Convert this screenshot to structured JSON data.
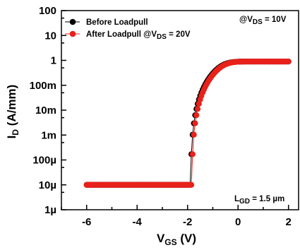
{
  "chart_data": {
    "type": "scatter",
    "xlim": [
      -7,
      2.4
    ],
    "ylim_log10": [
      -6,
      2
    ],
    "yscale": "log",
    "xticks": [
      -6,
      -4,
      -2,
      0,
      2
    ],
    "xtick_labels": [
      "-6",
      "-4",
      "-2",
      "0",
      "2"
    ],
    "yticks_log10": [
      2,
      1,
      0,
      -1,
      -2,
      -3,
      -4,
      -5,
      -6
    ],
    "ytick_labels": [
      "100",
      "10",
      "1",
      "100m",
      "10m",
      "1m",
      "100µ",
      "10µ",
      "1µ"
    ],
    "xlabel": {
      "main": "V",
      "sub": "GS",
      "tail": " (V)"
    },
    "ylabel": {
      "main": "I",
      "sub": "D",
      "tail": " (A/mm)"
    },
    "annotation_top": {
      "prefix": "@V",
      "sub": "DS",
      "tail": " = 10V"
    },
    "annotation_bottom": {
      "prefix": "L",
      "sub": "GD",
      "tail": " = 1.5 µm"
    },
    "series": [
      {
        "name_parts": {
          "main": "Before Loadpull"
        },
        "color": "#000000",
        "vth": -1.9,
        "leakage": 1e-05,
        "imax": 0.9
      },
      {
        "name_parts": {
          "main": "After Loadpull @V",
          "sub": "DS",
          "tail": " = 20V"
        },
        "color": "#e8211b",
        "vth": -1.85,
        "leakage": 1e-05,
        "imax": 0.9
      }
    ],
    "legend_location": "top-left",
    "grid": false
  }
}
